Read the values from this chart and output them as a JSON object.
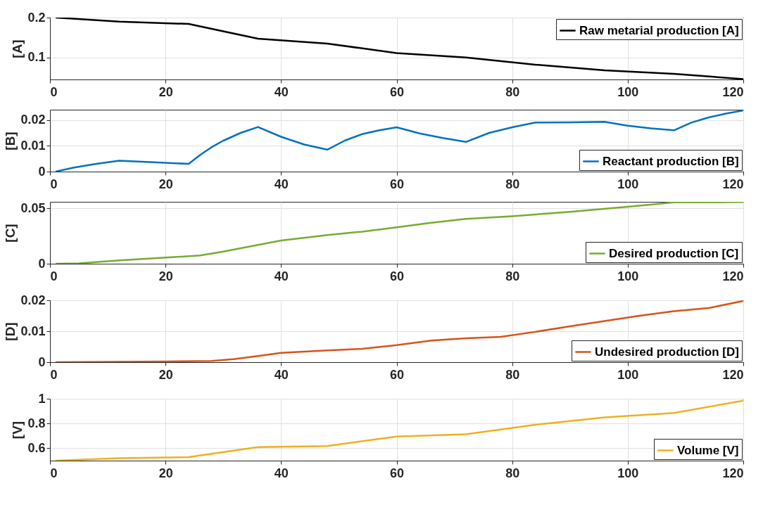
{
  "chart_data": [
    {
      "type": "line",
      "ylabel": "[A]",
      "xlim": [
        0,
        120
      ],
      "xticks": [
        0,
        20,
        40,
        60,
        80,
        100,
        120
      ],
      "ylim": [
        0.045,
        0.2
      ],
      "yticks": [
        0.1,
        0.2
      ],
      "grid": true,
      "legend": "top right",
      "line_style": "solid",
      "series": [
        {
          "name": "Raw metarial production [A]",
          "color": "#000000",
          "x": [
            1,
            12,
            24,
            36,
            48,
            60,
            72,
            84,
            96,
            108,
            120
          ],
          "values": [
            0.2,
            0.19,
            0.184,
            0.147,
            0.135,
            0.111,
            0.1,
            0.082,
            0.068,
            0.059,
            0.046
          ]
        }
      ]
    },
    {
      "type": "line",
      "ylabel": "[B]",
      "xlim": [
        0,
        120
      ],
      "xticks": [
        0,
        20,
        40,
        60,
        80,
        100,
        120
      ],
      "ylim": [
        0,
        0.024
      ],
      "yticks": [
        0,
        0.01,
        0.02
      ],
      "grid": true,
      "legend": "bottom right",
      "line_style": "solid",
      "series": [
        {
          "name": "Reactant production [B]",
          "color": "#0072bd",
          "x": [
            1,
            4,
            8,
            12,
            18,
            24,
            26,
            28,
            30,
            33,
            36,
            40,
            44,
            48,
            51,
            54,
            57,
            60,
            64,
            68,
            72,
            76,
            80,
            84,
            90,
            96,
            100,
            104,
            108,
            111,
            114,
            117,
            120
          ],
          "values": [
            0,
            0.0015,
            0.003,
            0.0042,
            0.0036,
            0.003,
            0.0065,
            0.0095,
            0.012,
            0.015,
            0.0173,
            0.0135,
            0.0105,
            0.0085,
            0.012,
            0.0145,
            0.016,
            0.0172,
            0.0148,
            0.013,
            0.0115,
            0.015,
            0.0172,
            0.019,
            0.0191,
            0.0193,
            0.0178,
            0.0168,
            0.016,
            0.019,
            0.021,
            0.0225,
            0.0237
          ]
        }
      ]
    },
    {
      "type": "line",
      "ylabel": "[C]",
      "xlim": [
        0,
        120
      ],
      "xticks": [
        0,
        20,
        40,
        60,
        80,
        100,
        120
      ],
      "ylim": [
        0,
        0.056
      ],
      "yticks": [
        0,
        0.05
      ],
      "grid": true,
      "legend": "bottom right",
      "line_style": "solid",
      "series": [
        {
          "name": "Desired production [C]",
          "color": "#77ac30",
          "x": [
            1,
            5,
            12,
            20,
            26,
            30,
            36,
            40,
            48,
            54,
            60,
            66,
            72,
            80,
            90,
            100,
            108,
            114,
            120
          ],
          "values": [
            0,
            0.0003,
            0.003,
            0.0055,
            0.0075,
            0.011,
            0.017,
            0.021,
            0.026,
            0.029,
            0.033,
            0.037,
            0.0405,
            0.043,
            0.047,
            0.0515,
            0.0555,
            0.0555,
            0.0558
          ]
        }
      ]
    },
    {
      "type": "line",
      "ylabel": "[D]",
      "xlim": [
        0,
        120
      ],
      "xticks": [
        0,
        20,
        40,
        60,
        80,
        100,
        120
      ],
      "ylim": [
        0,
        0.02
      ],
      "yticks": [
        0,
        0.01,
        0.02
      ],
      "grid": true,
      "legend": "bottom right",
      "line_style": "solid",
      "series": [
        {
          "name": "Undesired production [D]",
          "color": "#d95319",
          "x": [
            1,
            20,
            28,
            32,
            36,
            40,
            48,
            54,
            60,
            66,
            72,
            78,
            84,
            90,
            96,
            102,
            108,
            114,
            120
          ],
          "values": [
            0,
            0.0002,
            0.0004,
            0.001,
            0.002,
            0.003,
            0.0038,
            0.0043,
            0.0055,
            0.007,
            0.0077,
            0.0082,
            0.0098,
            0.0116,
            0.0133,
            0.015,
            0.0165,
            0.0175,
            0.0198
          ]
        }
      ]
    },
    {
      "type": "line",
      "ylabel": "[V]",
      "xlim": [
        0,
        120
      ],
      "xticks": [
        0,
        20,
        40,
        60,
        80,
        100,
        120
      ],
      "ylim": [
        0.5,
        1
      ],
      "yticks": [
        0.6,
        0.8,
        1
      ],
      "grid": true,
      "legend": "bottom right",
      "line_style": "solid",
      "series": [
        {
          "name": "Volume [V]",
          "color": "#edb120",
          "x": [
            1,
            12,
            24,
            36,
            48,
            60,
            72,
            84,
            96,
            108,
            120
          ],
          "values": [
            0.5,
            0.52,
            0.528,
            0.61,
            0.618,
            0.695,
            0.713,
            0.79,
            0.85,
            0.885,
            0.985
          ]
        }
      ]
    }
  ]
}
